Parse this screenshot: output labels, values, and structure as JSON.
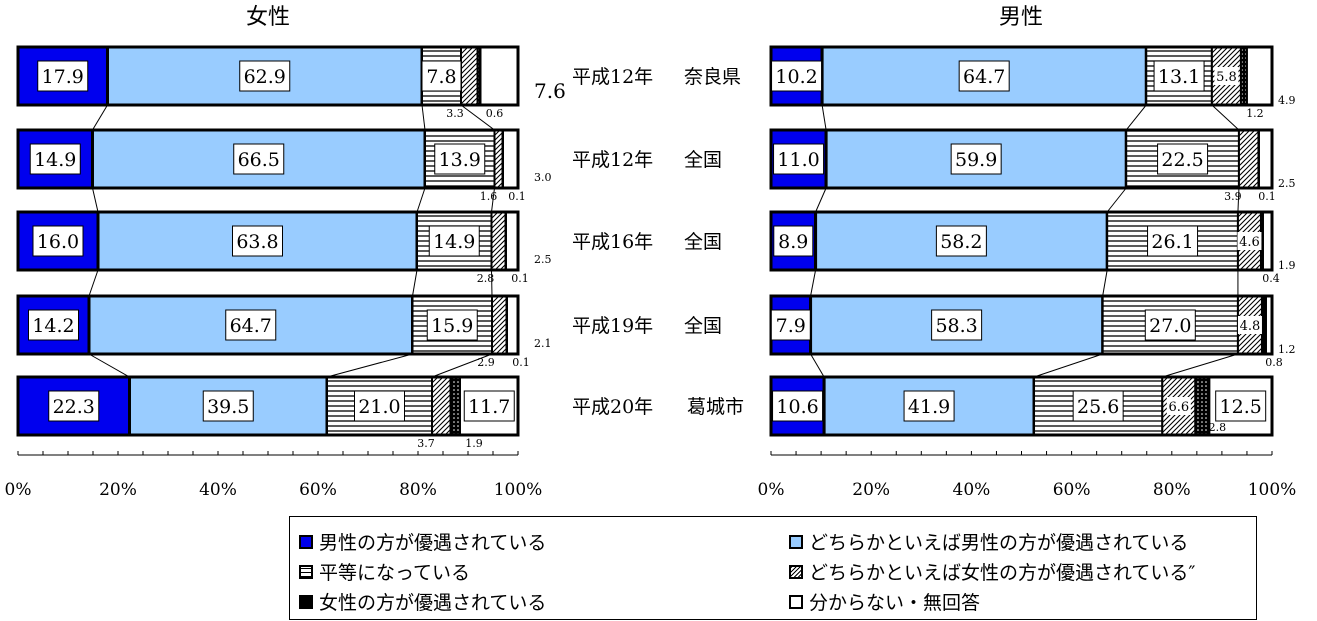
{
  "chart_data": [
    {
      "type": "bar",
      "orientation": "horizontal",
      "stacked": true,
      "title": "女性",
      "categories": [
        "平成12年　奈良県",
        "平成12年　全国",
        "平成16年　全国",
        "平成19年　全国",
        "平成20年　葛城市"
      ],
      "series": [
        {
          "name": "男性の方が優遇されている",
          "values": [
            17.9,
            14.9,
            16.0,
            14.2,
            22.3
          ]
        },
        {
          "name": "どちらかといえば男性の方が優遇されている",
          "values": [
            62.9,
            66.5,
            63.8,
            64.7,
            39.5
          ]
        },
        {
          "name": "平等になっている",
          "values": [
            7.8,
            13.9,
            14.9,
            15.9,
            21.0
          ]
        },
        {
          "name": "どちらかといえば女性の方が優遇されている",
          "values": [
            3.3,
            1.6,
            2.8,
            2.9,
            3.7
          ]
        },
        {
          "name": "女性の方が優遇されている",
          "values": [
            0.6,
            0.1,
            0.1,
            0.1,
            1.9
          ]
        },
        {
          "name": "分からない・無回答",
          "values": [
            7.6,
            3.0,
            2.5,
            2.1,
            11.7
          ]
        }
      ],
      "xlim": [
        0,
        100
      ],
      "xticks": [
        "0%",
        "20%",
        "40%",
        "60%",
        "80%",
        "100%"
      ]
    },
    {
      "type": "bar",
      "orientation": "horizontal",
      "stacked": true,
      "title": "男性",
      "categories": [
        "平成12年　奈良県",
        "平成12年　全国",
        "平成16年　全国",
        "平成19年　全国",
        "平成20年　葛城市"
      ],
      "series": [
        {
          "name": "男性の方が優遇されている",
          "values": [
            10.2,
            11.0,
            8.9,
            7.9,
            10.6
          ]
        },
        {
          "name": "どちらかといえば男性の方が優遇されている",
          "values": [
            64.7,
            59.9,
            58.2,
            58.3,
            41.9
          ]
        },
        {
          "name": "平等になっている",
          "values": [
            13.1,
            22.5,
            26.1,
            27.0,
            25.6
          ]
        },
        {
          "name": "どちらかといえば女性の方が優遇されている",
          "values": [
            5.8,
            3.9,
            4.6,
            4.8,
            6.6
          ]
        },
        {
          "name": "女性の方が優遇されている",
          "values": [
            1.2,
            0.1,
            0.4,
            0.8,
            2.8
          ]
        },
        {
          "name": "分からない・無回答",
          "values": [
            4.9,
            2.5,
            1.9,
            1.2,
            12.5
          ]
        }
      ],
      "xlim": [
        0,
        100
      ],
      "xticks": [
        "0%",
        "20%",
        "40%",
        "60%",
        "80%",
        "100%"
      ]
    }
  ],
  "category_labels": [
    "平成12年",
    "奈良県",
    "平成12年",
    "全国",
    "平成16年",
    "全国",
    "平成19年",
    "全国",
    "平成20年",
    "葛城市"
  ],
  "legend": [
    {
      "label": "男性の方が優遇されている",
      "swatch": "male"
    },
    {
      "label": "どちらかといえば男性の方が優遇されている",
      "swatch": "male-rather"
    },
    {
      "label": "平等になっている",
      "swatch": "equal"
    },
    {
      "label": "どちらかといえば女性の方が優遇されている″",
      "swatch": "female-rather"
    },
    {
      "label": "女性の方が優遇されている",
      "swatch": "female"
    },
    {
      "label": "分からない・無回答",
      "swatch": "unknown"
    }
  ],
  "colors": {
    "male": "#0000ee",
    "male_rather": "#99ccff",
    "border": "#000000",
    "background": "#ffffff"
  }
}
